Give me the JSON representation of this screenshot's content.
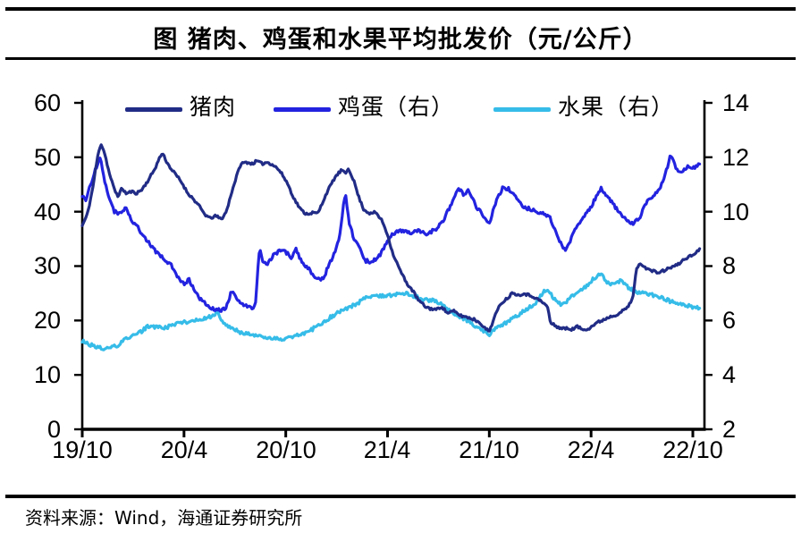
{
  "header": {
    "title": "图  猪肉、鸡蛋和水果平均批发价（元/公斤）"
  },
  "footer": {
    "source": "资料来源：Wind，海通证券研究所"
  },
  "chart_data": {
    "type": "line",
    "title": "猪肉、鸡蛋和水果平均批发价（元/公斤）",
    "unit": "元/公斤",
    "legend_position": "top",
    "grid": false,
    "x_axis": {
      "tick_labels": [
        "19/10",
        "20/4",
        "20/10",
        "21/4",
        "21/10",
        "22/4",
        "22/10"
      ],
      "months_span": 36.4
    },
    "left_axis": {
      "range": [
        0,
        60
      ],
      "tick_values": [
        60,
        50,
        40,
        30,
        20,
        10,
        0
      ],
      "tick_labels": [
        "60",
        "50",
        "40",
        "30",
        "20",
        "10",
        "0"
      ]
    },
    "right_axis": {
      "range": [
        2,
        14
      ],
      "tick_values": [
        14,
        12,
        10,
        8,
        6,
        4,
        2
      ],
      "tick_labels": [
        "14",
        "12",
        "10",
        "8",
        "6",
        "4",
        "2"
      ]
    },
    "series": [
      {
        "id": "pork",
        "name": "猪肉",
        "axis": "left",
        "color": "#212C86",
        "points": [
          [
            0,
            37.4
          ],
          [
            0.3,
            39.5
          ],
          [
            0.6,
            44
          ],
          [
            0.9,
            50
          ],
          [
            1.1,
            52.6
          ],
          [
            1.3,
            51
          ],
          [
            1.6,
            47
          ],
          [
            1.9,
            44
          ],
          [
            2.1,
            42.9
          ],
          [
            2.35,
            44.3
          ],
          [
            2.6,
            43.3
          ],
          [
            2.9,
            43.7
          ],
          [
            3.2,
            43.4
          ],
          [
            3.5,
            44
          ],
          [
            3.9,
            45.8
          ],
          [
            4.3,
            48
          ],
          [
            4.6,
            50.2
          ],
          [
            4.75,
            50.7
          ],
          [
            5.0,
            49
          ],
          [
            5.3,
            47.6
          ],
          [
            5.6,
            46.5
          ],
          [
            5.9,
            45.2
          ],
          [
            6.2,
            43.5
          ],
          [
            6.5,
            42.5
          ],
          [
            6.9,
            41
          ],
          [
            7.2,
            39.6
          ],
          [
            7.5,
            38.8
          ],
          [
            7.9,
            39.2
          ],
          [
            8.2,
            38.6
          ],
          [
            8.5,
            40
          ],
          [
            8.8,
            43.5
          ],
          [
            9.1,
            46.5
          ],
          [
            9.35,
            48.8
          ],
          [
            9.7,
            49.1
          ],
          [
            10.0,
            48.8
          ],
          [
            10.3,
            49.3
          ],
          [
            10.6,
            48.8
          ],
          [
            10.9,
            49.1
          ],
          [
            11.2,
            48.7
          ],
          [
            11.5,
            48
          ],
          [
            11.8,
            46.8
          ],
          [
            12.1,
            45.2
          ],
          [
            12.5,
            42.3
          ],
          [
            12.9,
            40.3
          ],
          [
            13.2,
            39.6
          ],
          [
            13.6,
            39.8
          ],
          [
            13.9,
            39.7
          ],
          [
            14.4,
            43.4
          ],
          [
            14.9,
            46.3
          ],
          [
            15.3,
            47.7
          ],
          [
            15.5,
            46.9
          ],
          [
            15.7,
            48
          ],
          [
            16.0,
            45.8
          ],
          [
            16.3,
            42.7
          ],
          [
            16.6,
            40.4
          ],
          [
            17.0,
            39.6
          ],
          [
            17.3,
            39.9
          ],
          [
            17.7,
            38.2
          ],
          [
            18.0,
            35.8
          ],
          [
            18.3,
            32.4
          ],
          [
            18.7,
            29.5
          ],
          [
            19.1,
            27
          ],
          [
            19.5,
            25.4
          ],
          [
            19.8,
            23.8
          ],
          [
            20.2,
            22.6
          ],
          [
            20.5,
            22.2
          ],
          [
            20.9,
            22.0
          ],
          [
            21.2,
            22.6
          ],
          [
            21.5,
            21.4
          ],
          [
            21.9,
            21.7
          ],
          [
            22.3,
            20.9
          ],
          [
            22.7,
            20.6
          ],
          [
            23.1,
            20.2
          ],
          [
            23.5,
            19.5
          ],
          [
            23.75,
            18.5
          ],
          [
            24.0,
            18.05
          ],
          [
            24.35,
            21
          ],
          [
            24.7,
            23.2
          ],
          [
            25.1,
            24.2
          ],
          [
            25.4,
            25.2
          ],
          [
            25.7,
            24.6
          ],
          [
            26.0,
            25.0
          ],
          [
            26.3,
            24.7
          ],
          [
            26.6,
            24.4
          ],
          [
            26.9,
            23.8
          ],
          [
            27.2,
            23.2
          ],
          [
            27.45,
            22.4
          ],
          [
            27.6,
            19.6
          ],
          [
            27.9,
            19.0
          ],
          [
            28.2,
            18.6
          ],
          [
            28.6,
            18.5
          ],
          [
            28.9,
            18.4
          ],
          [
            29.2,
            18.9
          ],
          [
            29.5,
            18.3
          ],
          [
            29.9,
            18.6
          ],
          [
            30.3,
            19.5
          ],
          [
            30.7,
            20.1
          ],
          [
            31.1,
            20.7
          ],
          [
            31.5,
            21.1
          ],
          [
            31.9,
            21.8
          ],
          [
            32.2,
            22.6
          ],
          [
            32.45,
            24
          ],
          [
            32.7,
            29.9
          ],
          [
            33.0,
            30.4
          ],
          [
            33.3,
            29.5
          ],
          [
            33.6,
            29.1
          ],
          [
            34.0,
            28.8
          ],
          [
            34.4,
            29.3
          ],
          [
            34.8,
            29.9
          ],
          [
            35.1,
            30.2
          ],
          [
            35.5,
            31.3
          ],
          [
            35.9,
            31.9
          ],
          [
            36.1,
            32.2
          ],
          [
            36.4,
            33.2
          ]
        ]
      },
      {
        "id": "egg",
        "name": "鸡蛋（右）",
        "axis": "right",
        "color": "#2323E0",
        "points": [
          [
            0,
            10.55
          ],
          [
            0.2,
            10.45
          ],
          [
            0.5,
            11.0
          ],
          [
            0.8,
            11.6
          ],
          [
            1.05,
            12.0
          ],
          [
            1.3,
            11.2
          ],
          [
            1.6,
            10.5
          ],
          [
            1.9,
            10.0
          ],
          [
            2.2,
            9.9
          ],
          [
            2.6,
            10.15
          ],
          [
            2.9,
            9.7
          ],
          [
            3.2,
            9.5
          ],
          [
            3.6,
            9.1
          ],
          [
            4.0,
            8.8
          ],
          [
            4.4,
            8.5
          ],
          [
            4.9,
            8.2
          ],
          [
            5.3,
            8.0
          ],
          [
            5.7,
            7.5
          ],
          [
            6.0,
            7.35
          ],
          [
            6.3,
            7.5
          ],
          [
            6.7,
            7.0
          ],
          [
            7.1,
            6.7
          ],
          [
            7.5,
            6.5
          ],
          [
            7.9,
            6.4
          ],
          [
            8.2,
            6.35
          ],
          [
            8.5,
            6.5
          ],
          [
            8.8,
            7.1
          ],
          [
            9.1,
            6.8
          ],
          [
            9.5,
            6.6
          ],
          [
            9.9,
            6.45
          ],
          [
            10.2,
            6.55
          ],
          [
            10.45,
            8.7
          ],
          [
            10.65,
            8.2
          ],
          [
            10.9,
            8.0
          ],
          [
            11.2,
            8.35
          ],
          [
            11.5,
            8.5
          ],
          [
            11.8,
            8.65
          ],
          [
            12.1,
            8.45
          ],
          [
            12.35,
            8.3
          ],
          [
            12.6,
            8.6
          ],
          [
            12.9,
            8.2
          ],
          [
            13.2,
            8.0
          ],
          [
            13.6,
            7.7
          ],
          [
            13.9,
            7.55
          ],
          [
            14.2,
            7.5
          ],
          [
            14.5,
            8.0
          ],
          [
            14.9,
            8.5
          ],
          [
            15.2,
            9.2
          ],
          [
            15.5,
            10.7
          ],
          [
            15.75,
            9.6
          ],
          [
            16.0,
            9.0
          ],
          [
            16.3,
            8.8
          ],
          [
            16.7,
            8.2
          ],
          [
            17.1,
            8.15
          ],
          [
            17.5,
            8.35
          ],
          [
            17.9,
            8.8
          ],
          [
            18.3,
            9.2
          ],
          [
            18.8,
            9.3
          ],
          [
            19.3,
            9.2
          ],
          [
            19.8,
            9.3
          ],
          [
            20.3,
            9.2
          ],
          [
            20.9,
            9.35
          ],
          [
            21.3,
            9.7
          ],
          [
            21.8,
            10.3
          ],
          [
            22.2,
            10.9
          ],
          [
            22.5,
            10.6
          ],
          [
            22.8,
            10.8
          ],
          [
            23.2,
            10.2
          ],
          [
            23.6,
            9.9
          ],
          [
            24.0,
            9.55
          ],
          [
            24.4,
            10.4
          ],
          [
            24.8,
            10.9
          ],
          [
            25.1,
            10.85
          ],
          [
            25.4,
            10.7
          ],
          [
            25.7,
            10.4
          ],
          [
            26.0,
            10.15
          ],
          [
            26.4,
            10.1
          ],
          [
            26.8,
            10.0
          ],
          [
            27.2,
            9.9
          ],
          [
            27.6,
            9.75
          ],
          [
            27.9,
            9.3
          ],
          [
            28.2,
            8.85
          ],
          [
            28.5,
            8.6
          ],
          [
            28.9,
            9.1
          ],
          [
            29.2,
            9.5
          ],
          [
            29.6,
            9.8
          ],
          [
            30.1,
            10.3
          ],
          [
            30.6,
            10.9
          ],
          [
            30.9,
            10.55
          ],
          [
            31.2,
            10.4
          ],
          [
            31.6,
            10.0
          ],
          [
            32.1,
            9.7
          ],
          [
            32.5,
            9.55
          ],
          [
            32.9,
            9.8
          ],
          [
            33.2,
            10.3
          ],
          [
            33.6,
            10.5
          ],
          [
            34.0,
            10.8
          ],
          [
            34.35,
            11.3
          ],
          [
            34.7,
            12.1
          ],
          [
            34.95,
            11.7
          ],
          [
            35.15,
            11.4
          ],
          [
            35.5,
            11.55
          ],
          [
            35.8,
            11.7
          ],
          [
            36.1,
            11.6
          ],
          [
            36.4,
            11.75
          ]
        ]
      },
      {
        "id": "fruit",
        "name": "水果（右）",
        "axis": "right",
        "color": "#36BCE8",
        "points": [
          [
            0,
            5.25
          ],
          [
            0.5,
            5.1
          ],
          [
            1.0,
            5.0
          ],
          [
            1.5,
            4.97
          ],
          [
            2.0,
            5.05
          ],
          [
            2.5,
            5.3
          ],
          [
            3.0,
            5.45
          ],
          [
            3.5,
            5.6
          ],
          [
            3.9,
            5.8
          ],
          [
            4.4,
            5.75
          ],
          [
            5.0,
            5.75
          ],
          [
            5.6,
            5.9
          ],
          [
            6.2,
            5.95
          ],
          [
            6.8,
            6.05
          ],
          [
            7.3,
            6.1
          ],
          [
            7.8,
            6.2
          ],
          [
            7.95,
            6.35
          ],
          [
            8.2,
            6.0
          ],
          [
            8.8,
            5.7
          ],
          [
            9.4,
            5.55
          ],
          [
            9.9,
            5.5
          ],
          [
            10.5,
            5.42
          ],
          [
            11.2,
            5.32
          ],
          [
            11.9,
            5.3
          ],
          [
            12.4,
            5.4
          ],
          [
            12.9,
            5.5
          ],
          [
            13.5,
            5.65
          ],
          [
            14.1,
            5.9
          ],
          [
            14.7,
            6.15
          ],
          [
            15.3,
            6.35
          ],
          [
            16.0,
            6.55
          ],
          [
            16.8,
            6.85
          ],
          [
            17.4,
            6.9
          ],
          [
            18.0,
            6.9
          ],
          [
            18.6,
            6.95
          ],
          [
            19.0,
            7.0
          ],
          [
            19.6,
            6.9
          ],
          [
            20.2,
            6.75
          ],
          [
            20.8,
            6.75
          ],
          [
            21.4,
            6.5
          ],
          [
            22.0,
            6.2
          ],
          [
            22.6,
            6.05
          ],
          [
            23.0,
            5.85
          ],
          [
            23.5,
            5.65
          ],
          [
            24.0,
            5.5
          ],
          [
            24.4,
            5.7
          ],
          [
            24.8,
            5.85
          ],
          [
            25.2,
            6.0
          ],
          [
            25.6,
            6.15
          ],
          [
            26.0,
            6.35
          ],
          [
            26.4,
            6.5
          ],
          [
            26.8,
            6.7
          ],
          [
            27.1,
            6.95
          ],
          [
            27.35,
            7.15
          ],
          [
            27.7,
            6.9
          ],
          [
            28.0,
            6.7
          ],
          [
            28.3,
            6.55
          ],
          [
            28.7,
            6.8
          ],
          [
            29.1,
            7.0
          ],
          [
            29.5,
            7.15
          ],
          [
            30.0,
            7.45
          ],
          [
            30.55,
            7.75
          ],
          [
            30.9,
            7.45
          ],
          [
            31.2,
            7.3
          ],
          [
            31.6,
            7.45
          ],
          [
            31.95,
            7.4
          ],
          [
            32.3,
            7.15
          ],
          [
            32.7,
            7.05
          ],
          [
            33.1,
            7.0
          ],
          [
            33.5,
            6.95
          ],
          [
            33.9,
            6.9
          ],
          [
            34.3,
            6.8
          ],
          [
            34.7,
            6.7
          ],
          [
            35.1,
            6.65
          ],
          [
            35.5,
            6.6
          ],
          [
            35.9,
            6.5
          ],
          [
            36.4,
            6.45
          ]
        ]
      }
    ]
  }
}
